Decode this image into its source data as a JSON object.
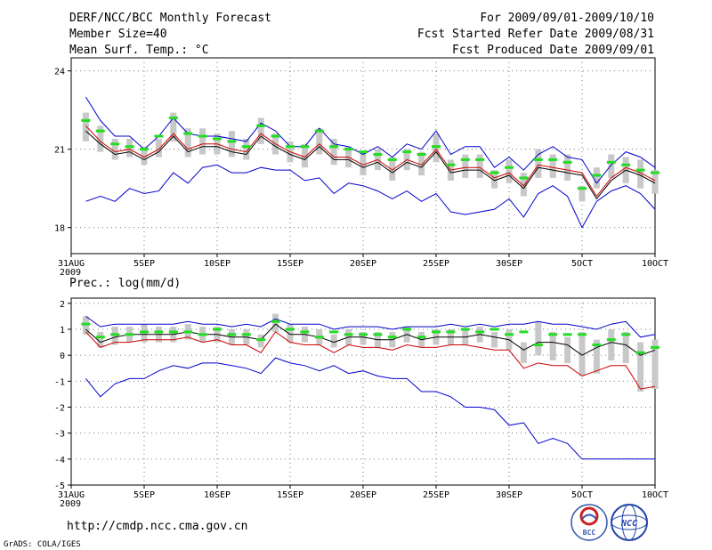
{
  "header": {
    "line1_left": "DERF/NCC/BCC Monthly Forecast",
    "line2_left": "Member Size=40",
    "line1_right": "For 2009/09/01-2009/10/10",
    "line2_right": "Fcst Started Refer Date 2009/08/31",
    "line3_right": "Fcst Produced Date 2009/09/01"
  },
  "footer": {
    "url": "http://cmdp.ncc.cma.gov.cn",
    "grads": "GrADS: COLA/IGES",
    "logo_bcc": "BCC",
    "logo_ncc": "NCC"
  },
  "colors": {
    "max_line": "#0000cc",
    "min_line": "#0000cc",
    "mean_line": "#000000",
    "median_line": "#cc0000",
    "box": "#c8c8c8",
    "obs_marker": "#22dd22"
  },
  "chart_data": [
    {
      "type": "line",
      "title": "Mean Surf. Temp.: °C",
      "ylim": [
        17,
        24.5
      ],
      "yticks": [
        18,
        21,
        24
      ],
      "ytick_labels": [
        "18",
        "21",
        "24"
      ],
      "xlim": [
        0,
        40
      ],
      "xticks": [
        0,
        5,
        10,
        15,
        20,
        25,
        30,
        35,
        40
      ],
      "xtick_labels": [
        "31AUG",
        "5SEP",
        "10SEP",
        "15SEP",
        "20SEP",
        "25SEP",
        "30SEP",
        "5OCT",
        "10OCT"
      ],
      "x_sub_label": "2009",
      "x": [
        1,
        2,
        3,
        4,
        5,
        6,
        7,
        8,
        9,
        10,
        11,
        12,
        13,
        14,
        15,
        16,
        17,
        18,
        19,
        20,
        21,
        22,
        23,
        24,
        25,
        26,
        27,
        28,
        29,
        30,
        31,
        32,
        33,
        34,
        35,
        36,
        37,
        38,
        39,
        40
      ],
      "series": [
        {
          "name": "max",
          "values": [
            23.0,
            22.1,
            21.5,
            21.5,
            21.0,
            21.5,
            22.2,
            21.6,
            21.5,
            21.5,
            21.4,
            21.3,
            22.0,
            21.7,
            21.1,
            21.1,
            21.8,
            21.2,
            21.1,
            20.8,
            21.1,
            20.7,
            21.2,
            21.0,
            21.7,
            20.8,
            21.1,
            21.1,
            20.3,
            20.7,
            20.2,
            20.8,
            21.1,
            20.7,
            20.6,
            19.7,
            20.4,
            20.9,
            20.7,
            20.3
          ]
        },
        {
          "name": "mean",
          "values": [
            21.7,
            21.2,
            20.8,
            20.9,
            20.6,
            20.9,
            21.5,
            20.9,
            21.1,
            21.1,
            20.9,
            20.8,
            21.5,
            21.1,
            20.8,
            20.6,
            21.1,
            20.6,
            20.6,
            20.3,
            20.5,
            20.1,
            20.5,
            20.3,
            20.9,
            20.1,
            20.2,
            20.2,
            19.8,
            20.0,
            19.5,
            20.3,
            20.2,
            20.1,
            20.0,
            19.1,
            19.8,
            20.2,
            20.0,
            19.7
          ]
        },
        {
          "name": "median",
          "values": [
            21.9,
            21.3,
            20.9,
            21.0,
            20.7,
            21.0,
            21.6,
            21.0,
            21.2,
            21.2,
            21.0,
            20.9,
            21.6,
            21.2,
            20.9,
            20.7,
            21.2,
            20.7,
            20.7,
            20.4,
            20.6,
            20.2,
            20.6,
            20.4,
            21.0,
            20.2,
            20.3,
            20.3,
            19.9,
            20.1,
            19.6,
            20.4,
            20.3,
            20.2,
            20.1,
            19.2,
            19.9,
            20.3,
            20.1,
            19.8
          ]
        },
        {
          "name": "min",
          "values": [
            19.0,
            19.2,
            19.0,
            19.5,
            19.3,
            19.4,
            20.1,
            19.7,
            20.3,
            20.4,
            20.1,
            20.1,
            20.3,
            20.2,
            20.2,
            19.8,
            19.9,
            19.3,
            19.7,
            19.6,
            19.4,
            19.1,
            19.4,
            19.0,
            19.3,
            18.6,
            18.5,
            18.6,
            18.7,
            19.1,
            18.4,
            19.3,
            19.6,
            19.2,
            18.0,
            19.0,
            19.4,
            19.6,
            19.3,
            18.7
          ]
        },
        {
          "name": "obs",
          "values": [
            22.1,
            21.7,
            21.2,
            21.1,
            21.0,
            21.5,
            22.2,
            21.6,
            21.5,
            21.4,
            21.3,
            21.1,
            21.9,
            21.5,
            21.1,
            21.1,
            21.7,
            21.1,
            21.0,
            20.9,
            20.8,
            20.6,
            20.9,
            20.8,
            21.1,
            20.4,
            20.6,
            20.6,
            20.1,
            20.3,
            19.9,
            20.6,
            20.6,
            20.5,
            19.5,
            20.0,
            20.5,
            20.4,
            20.2,
            20.1
          ]
        }
      ],
      "box_low": [
        21.3,
        20.9,
        20.6,
        20.7,
        20.4,
        20.7,
        21.3,
        20.7,
        20.8,
        20.8,
        20.7,
        20.6,
        21.2,
        20.8,
        20.5,
        20.3,
        20.8,
        20.4,
        20.3,
        20.0,
        20.2,
        19.8,
        20.2,
        20.0,
        20.5,
        19.8,
        19.9,
        19.9,
        19.5,
        19.7,
        19.2,
        19.9,
        19.9,
        19.8,
        19.0,
        19.5,
        19.9,
        19.7,
        19.5,
        19.3
      ],
      "box_high": [
        22.4,
        21.9,
        21.4,
        21.4,
        21.1,
        21.4,
        22.4,
        21.8,
        21.8,
        21.6,
        21.7,
        21.4,
        22.2,
        21.6,
        21.3,
        21.2,
        21.8,
        21.4,
        21.1,
        20.9,
        21.0,
        20.7,
        21.0,
        20.9,
        21.6,
        20.6,
        20.8,
        20.8,
        20.2,
        20.6,
        20.1,
        21.0,
        20.8,
        20.8,
        19.6,
        20.3,
        20.8,
        20.7,
        20.6,
        20.2
      ]
    },
    {
      "type": "line",
      "title": "Prec.: log(mm/d)",
      "ylim": [
        -5,
        2.2
      ],
      "yticks": [
        -5,
        -4,
        -3,
        -2,
        -1,
        0,
        1,
        2
      ],
      "ytick_labels": [
        "-5",
        "-4",
        "-3",
        "-2",
        "-1",
        "0",
        "1",
        "2"
      ],
      "xlim": [
        0,
        40
      ],
      "xticks": [
        0,
        5,
        10,
        15,
        20,
        25,
        30,
        35,
        40
      ],
      "xtick_labels": [
        "31AUG",
        "5SEP",
        "10SEP",
        "15SEP",
        "20SEP",
        "25SEP",
        "30SEP",
        "5OCT",
        "10OCT"
      ],
      "x_sub_label": "2009",
      "x": [
        1,
        2,
        3,
        4,
        5,
        6,
        7,
        8,
        9,
        10,
        11,
        12,
        13,
        14,
        15,
        16,
        17,
        18,
        19,
        20,
        21,
        22,
        23,
        24,
        25,
        26,
        27,
        28,
        29,
        30,
        31,
        32,
        33,
        34,
        35,
        36,
        37,
        38,
        39,
        40
      ],
      "series": [
        {
          "name": "max",
          "values": [
            1.5,
            1.1,
            1.2,
            1.2,
            1.2,
            1.2,
            1.2,
            1.3,
            1.2,
            1.2,
            1.1,
            1.2,
            1.1,
            1.4,
            1.2,
            1.2,
            1.2,
            1.0,
            1.1,
            1.1,
            1.1,
            1.0,
            1.1,
            1.1,
            1.1,
            1.2,
            1.1,
            1.2,
            1.1,
            1.2,
            1.2,
            1.3,
            1.2,
            1.2,
            1.1,
            1.0,
            1.2,
            1.3,
            0.7,
            0.8
          ]
        },
        {
          "name": "mean",
          "values": [
            1.0,
            0.5,
            0.7,
            0.8,
            0.8,
            0.8,
            0.8,
            0.9,
            0.8,
            0.8,
            0.7,
            0.7,
            0.6,
            1.2,
            0.8,
            0.8,
            0.7,
            0.5,
            0.7,
            0.7,
            0.6,
            0.6,
            0.8,
            0.6,
            0.7,
            0.7,
            0.7,
            0.8,
            0.7,
            0.6,
            0.2,
            0.5,
            0.5,
            0.4,
            0.0,
            0.3,
            0.5,
            0.4,
            0.0,
            0.2
          ]
        },
        {
          "name": "median",
          "values": [
            0.9,
            0.3,
            0.5,
            0.5,
            0.6,
            0.6,
            0.6,
            0.7,
            0.5,
            0.6,
            0.4,
            0.4,
            0.1,
            0.9,
            0.5,
            0.4,
            0.4,
            0.1,
            0.4,
            0.3,
            0.3,
            0.2,
            0.4,
            0.3,
            0.3,
            0.4,
            0.4,
            0.3,
            0.2,
            0.2,
            -0.5,
            -0.3,
            -0.4,
            -0.4,
            -0.8,
            -0.6,
            -0.4,
            -0.4,
            -1.3,
            -1.2
          ]
        },
        {
          "name": "min",
          "values": [
            -0.9,
            -1.6,
            -1.1,
            -0.9,
            -0.9,
            -0.6,
            -0.4,
            -0.5,
            -0.3,
            -0.3,
            -0.4,
            -0.5,
            -0.7,
            -0.1,
            -0.3,
            -0.4,
            -0.6,
            -0.4,
            -0.7,
            -0.6,
            -0.8,
            -0.9,
            -0.9,
            -1.4,
            -1.4,
            -1.6,
            -2.0,
            -2.0,
            -2.1,
            -2.7,
            -2.6,
            -3.4,
            -3.2,
            -3.4,
            -4.0,
            -4.0,
            -4.0,
            -4.0,
            -4.0,
            -4.0
          ]
        },
        {
          "name": "obs",
          "values": [
            1.2,
            0.7,
            0.8,
            0.8,
            0.9,
            0.9,
            0.9,
            0.9,
            0.8,
            1.0,
            0.8,
            0.8,
            0.6,
            1.3,
            1.0,
            0.9,
            0.7,
            0.9,
            0.8,
            0.8,
            0.8,
            0.7,
            1.0,
            0.7,
            0.9,
            0.9,
            1.0,
            0.9,
            1.0,
            0.8,
            0.9,
            0.4,
            0.8,
            0.8,
            0.8,
            0.4,
            0.6,
            0.8,
            0.1,
            0.3
          ]
        }
      ],
      "box_low": [
        0.8,
        0.3,
        0.4,
        0.5,
        0.5,
        0.5,
        0.5,
        0.6,
        0.5,
        0.5,
        0.4,
        0.4,
        0.3,
        0.9,
        0.5,
        0.5,
        0.4,
        0.3,
        0.4,
        0.4,
        0.3,
        0.3,
        0.5,
        0.3,
        0.4,
        0.4,
        0.4,
        0.5,
        0.3,
        0.2,
        -0.3,
        0.0,
        -0.2,
        -0.3,
        -0.8,
        -0.7,
        -0.2,
        -0.3,
        -1.4,
        -1.3
      ],
      "box_high": [
        1.5,
        0.9,
        1.1,
        1.1,
        1.2,
        1.1,
        1.1,
        1.2,
        1.1,
        1.1,
        1.0,
        1.0,
        0.8,
        1.6,
        1.2,
        1.1,
        1.0,
        0.8,
        1.0,
        0.9,
        0.9,
        0.9,
        1.1,
        0.9,
        1.0,
        1.0,
        1.0,
        1.1,
        0.9,
        1.0,
        0.5,
        1.3,
        0.9,
        0.7,
        0.9,
        0.6,
        1.0,
        0.9,
        0.5,
        0.6
      ]
    }
  ]
}
